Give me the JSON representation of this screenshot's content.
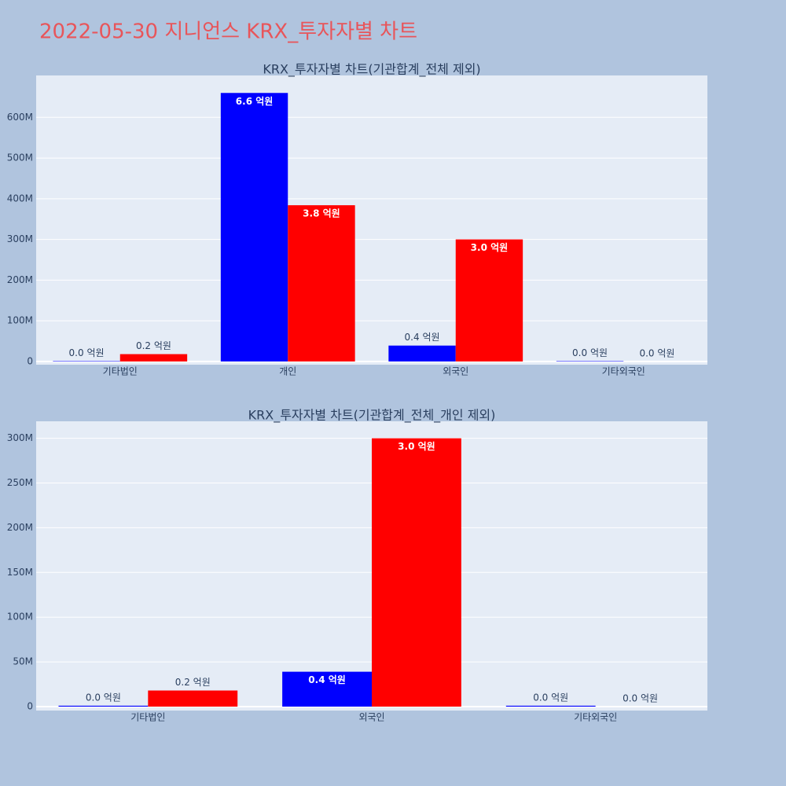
{
  "title": "2022-05-30 지니언스 KRX_투자자별 차트",
  "chart_data": [
    {
      "type": "bar",
      "title": "KRX_투자자별 차트(기관합계_전체 제외)",
      "categories": [
        "기타법인",
        "개인",
        "외국인",
        "기타외국인"
      ],
      "series": [
        {
          "color": "#0000ff",
          "values": [
            1000000,
            660000000,
            39000000,
            1000000
          ],
          "value_labels": [
            "0.0 억원",
            "6.6 억원",
            "0.4 억원",
            "0.0 억원"
          ]
        },
        {
          "color": "#ff0000",
          "values": [
            18000000,
            384000000,
            300000000,
            0
          ],
          "value_labels": [
            "0.2 억원",
            "3.8 억원",
            "3.0 억원",
            "0.0 억원"
          ]
        }
      ],
      "ylim": [
        -8000000,
        703000000
      ],
      "yticks": [
        0,
        {
          "value": 100000000,
          "label": "100M"
        },
        {
          "value": 200000000,
          "label": "200M"
        },
        {
          "value": 300000000,
          "label": "300M"
        },
        {
          "value": 400000000,
          "label": "400M"
        },
        {
          "value": 500000000,
          "label": "500M"
        },
        {
          "value": 600000000,
          "label": "600M"
        }
      ],
      "grid": true
    },
    {
      "type": "bar",
      "title": "KRX_투자자별 차트(기관합계_전체_개인 제외)",
      "categories": [
        "기타법인",
        "외국인",
        "기타외국인"
      ],
      "series": [
        {
          "color": "#0000ff",
          "values": [
            1000000,
            39000000,
            1000000
          ],
          "value_labels": [
            "0.0 억원",
            "0.4 억원",
            "0.0 억원"
          ]
        },
        {
          "color": "#ff0000",
          "values": [
            18000000,
            300000000,
            0
          ],
          "value_labels": [
            "0.2 억원",
            "3.0 억원",
            "0.0 억원"
          ]
        }
      ],
      "ylim": [
        -4400000,
        319000000
      ],
      "yticks": [
        0,
        {
          "value": 50000000,
          "label": "50M"
        },
        {
          "value": 100000000,
          "label": "100M"
        },
        {
          "value": 150000000,
          "label": "150M"
        },
        {
          "value": 200000000,
          "label": "200M"
        },
        {
          "value": 250000000,
          "label": "250M"
        },
        {
          "value": 300000000,
          "label": "300M"
        }
      ],
      "grid": true
    }
  ]
}
